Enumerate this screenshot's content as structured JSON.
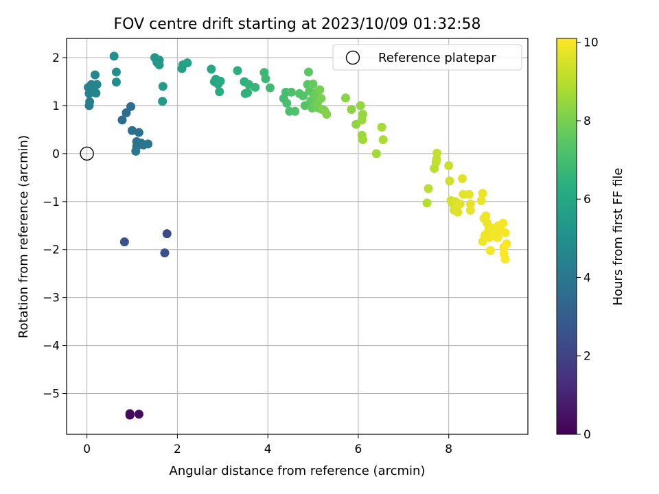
{
  "chart_data": {
    "type": "scatter",
    "title": "FOV centre drift starting at 2023/10/09 01:32:58",
    "xlabel": "Angular distance from reference (arcmin)",
    "ylabel": "Rotation from reference (arcmin)",
    "xlim": [
      -0.45,
      9.75
    ],
    "ylim": [
      -5.85,
      2.4
    ],
    "xticks": [
      0,
      2,
      4,
      6,
      8
    ],
    "yticks": [
      -5,
      -4,
      -3,
      -2,
      -1,
      0,
      1,
      2
    ],
    "grid": true,
    "colormap": "viridis",
    "colorbar": {
      "label": "Hours from first FF file",
      "min": 0,
      "max": 10.1,
      "ticks": [
        0,
        2,
        4,
        6,
        8,
        10
      ]
    },
    "legend": {
      "position": "top-right",
      "entries": [
        "Reference platepar"
      ]
    },
    "reference_point": {
      "x": 0,
      "y": 0,
      "label": "Reference platepar"
    },
    "points": [
      {
        "x": 0.95,
        "y": -5.45,
        "t": 0.2
      },
      {
        "x": 0.95,
        "y": -5.42,
        "t": 0.25
      },
      {
        "x": 1.15,
        "y": -5.43,
        "t": 0.3
      },
      {
        "x": 0.83,
        "y": -1.84,
        "t": 2.6
      },
      {
        "x": 1.77,
        "y": -1.67,
        "t": 2.3
      },
      {
        "x": 1.72,
        "y": -2.07,
        "t": 2.5
      },
      {
        "x": 0.78,
        "y": 0.7,
        "t": 3.55
      },
      {
        "x": 0.87,
        "y": 0.85,
        "t": 3.6
      },
      {
        "x": 0.97,
        "y": 0.98,
        "t": 3.65
      },
      {
        "x": 1.0,
        "y": 0.48,
        "t": 3.7
      },
      {
        "x": 1.15,
        "y": 0.44,
        "t": 3.75
      },
      {
        "x": 1.1,
        "y": 0.25,
        "t": 3.8
      },
      {
        "x": 1.2,
        "y": 0.22,
        "t": 3.85
      },
      {
        "x": 1.1,
        "y": 0.15,
        "t": 3.9
      },
      {
        "x": 1.25,
        "y": 0.18,
        "t": 3.95
      },
      {
        "x": 1.35,
        "y": 0.2,
        "t": 4.0
      },
      {
        "x": 1.08,
        "y": 0.05,
        "t": 4.05
      },
      {
        "x": 0.05,
        "y": 1.0,
        "t": 4.3
      },
      {
        "x": 0.06,
        "y": 1.08,
        "t": 4.35
      },
      {
        "x": 0.05,
        "y": 1.25,
        "t": 4.4
      },
      {
        "x": 0.03,
        "y": 1.38,
        "t": 4.45
      },
      {
        "x": 0.1,
        "y": 1.44,
        "t": 4.5
      },
      {
        "x": 0.16,
        "y": 1.3,
        "t": 4.55
      },
      {
        "x": 0.2,
        "y": 1.26,
        "t": 4.6
      },
      {
        "x": 0.22,
        "y": 1.44,
        "t": 4.65
      },
      {
        "x": 0.18,
        "y": 1.64,
        "t": 4.7
      },
      {
        "x": 0.65,
        "y": 1.49,
        "t": 5.0
      },
      {
        "x": 0.65,
        "y": 1.7,
        "t": 5.05
      },
      {
        "x": 0.6,
        "y": 2.03,
        "t": 5.1
      },
      {
        "x": 1.5,
        "y": 2.0,
        "t": 5.3
      },
      {
        "x": 1.55,
        "y": 1.9,
        "t": 5.35
      },
      {
        "x": 1.6,
        "y": 1.95,
        "t": 5.4
      },
      {
        "x": 1.6,
        "y": 1.85,
        "t": 5.45
      },
      {
        "x": 1.68,
        "y": 1.4,
        "t": 5.5
      },
      {
        "x": 1.67,
        "y": 1.09,
        "t": 5.55
      },
      {
        "x": 2.1,
        "y": 1.77,
        "t": 5.7
      },
      {
        "x": 2.12,
        "y": 1.85,
        "t": 5.75
      },
      {
        "x": 2.22,
        "y": 1.89,
        "t": 5.8
      },
      {
        "x": 2.75,
        "y": 1.76,
        "t": 6.0
      },
      {
        "x": 2.82,
        "y": 1.5,
        "t": 6.05
      },
      {
        "x": 2.85,
        "y": 1.55,
        "t": 6.1
      },
      {
        "x": 2.9,
        "y": 1.45,
        "t": 6.15
      },
      {
        "x": 2.95,
        "y": 1.51,
        "t": 6.2
      },
      {
        "x": 2.93,
        "y": 1.29,
        "t": 6.25
      },
      {
        "x": 3.33,
        "y": 1.73,
        "t": 6.4
      },
      {
        "x": 3.48,
        "y": 1.5,
        "t": 6.45
      },
      {
        "x": 3.5,
        "y": 1.25,
        "t": 6.5
      },
      {
        "x": 3.55,
        "y": 1.27,
        "t": 6.55
      },
      {
        "x": 3.58,
        "y": 1.44,
        "t": 6.6
      },
      {
        "x": 3.72,
        "y": 1.38,
        "t": 6.65
      },
      {
        "x": 3.92,
        "y": 1.69,
        "t": 6.8
      },
      {
        "x": 3.95,
        "y": 1.56,
        "t": 6.85
      },
      {
        "x": 4.05,
        "y": 1.37,
        "t": 6.9
      },
      {
        "x": 4.35,
        "y": 1.15,
        "t": 7.0
      },
      {
        "x": 4.4,
        "y": 1.28,
        "t": 7.05
      },
      {
        "x": 4.42,
        "y": 1.05,
        "t": 7.1
      },
      {
        "x": 4.48,
        "y": 0.88,
        "t": 7.15
      },
      {
        "x": 4.52,
        "y": 1.28,
        "t": 7.2
      },
      {
        "x": 4.6,
        "y": 0.88,
        "t": 7.25
      },
      {
        "x": 4.7,
        "y": 1.25,
        "t": 7.3
      },
      {
        "x": 4.78,
        "y": 1.2,
        "t": 7.35
      },
      {
        "x": 4.82,
        "y": 1.0,
        "t": 7.4
      },
      {
        "x": 4.88,
        "y": 1.44,
        "t": 7.45
      },
      {
        "x": 4.9,
        "y": 1.7,
        "t": 7.5
      },
      {
        "x": 4.92,
        "y": 1.3,
        "t": 7.55
      },
      {
        "x": 4.95,
        "y": 1.1,
        "t": 7.6
      },
      {
        "x": 4.98,
        "y": 0.95,
        "t": 7.65
      },
      {
        "x": 5.0,
        "y": 1.45,
        "t": 7.7
      },
      {
        "x": 5.02,
        "y": 1.2,
        "t": 7.75
      },
      {
        "x": 5.05,
        "y": 1.0,
        "t": 7.8
      },
      {
        "x": 5.08,
        "y": 1.28,
        "t": 7.85
      },
      {
        "x": 5.1,
        "y": 1.07,
        "t": 7.9
      },
      {
        "x": 5.12,
        "y": 0.95,
        "t": 7.95
      },
      {
        "x": 5.15,
        "y": 1.33,
        "t": 8.0
      },
      {
        "x": 5.18,
        "y": 1.15,
        "t": 8.05
      },
      {
        "x": 5.2,
        "y": 0.92,
        "t": 8.1
      },
      {
        "x": 5.25,
        "y": 0.9,
        "t": 8.15
      },
      {
        "x": 5.3,
        "y": 0.82,
        "t": 8.2
      },
      {
        "x": 5.72,
        "y": 1.16,
        "t": 8.3
      },
      {
        "x": 5.85,
        "y": 0.92,
        "t": 8.35
      },
      {
        "x": 5.95,
        "y": 0.61,
        "t": 8.4
      },
      {
        "x": 6.05,
        "y": 1.0,
        "t": 8.45
      },
      {
        "x": 6.1,
        "y": 0.82,
        "t": 8.5
      },
      {
        "x": 6.08,
        "y": 0.7,
        "t": 8.55
      },
      {
        "x": 6.08,
        "y": 0.38,
        "t": 8.6
      },
      {
        "x": 6.1,
        "y": 0.29,
        "t": 8.65
      },
      {
        "x": 6.4,
        "y": 0.0,
        "t": 8.7
      },
      {
        "x": 6.52,
        "y": 0.55,
        "t": 8.75
      },
      {
        "x": 6.55,
        "y": 0.29,
        "t": 8.8
      },
      {
        "x": 7.52,
        "y": -1.03,
        "t": 9.0
      },
      {
        "x": 7.55,
        "y": -0.73,
        "t": 9.05
      },
      {
        "x": 7.68,
        "y": -0.31,
        "t": 9.1
      },
      {
        "x": 7.72,
        "y": -0.18,
        "t": 9.15
      },
      {
        "x": 7.73,
        "y": -0.12,
        "t": 9.2
      },
      {
        "x": 7.74,
        "y": 0.01,
        "t": 9.25
      },
      {
        "x": 8.0,
        "y": -0.25,
        "t": 9.3
      },
      {
        "x": 8.02,
        "y": -0.57,
        "t": 9.35
      },
      {
        "x": 8.05,
        "y": -0.98,
        "t": 9.4
      },
      {
        "x": 8.1,
        "y": -1.05,
        "t": 9.45
      },
      {
        "x": 8.12,
        "y": -1.18,
        "t": 9.5
      },
      {
        "x": 8.15,
        "y": -1.0,
        "t": 9.55
      },
      {
        "x": 8.18,
        "y": -1.1,
        "t": 9.6
      },
      {
        "x": 8.2,
        "y": -1.22,
        "t": 9.62
      },
      {
        "x": 8.25,
        "y": -1.05,
        "t": 9.65
      },
      {
        "x": 8.3,
        "y": -0.52,
        "t": 9.68
      },
      {
        "x": 8.32,
        "y": -0.85,
        "t": 9.7
      },
      {
        "x": 8.45,
        "y": -0.85,
        "t": 9.72
      },
      {
        "x": 8.48,
        "y": -1.05,
        "t": 9.74
      },
      {
        "x": 8.48,
        "y": -1.18,
        "t": 9.76
      },
      {
        "x": 8.75,
        "y": -0.83,
        "t": 9.8
      },
      {
        "x": 8.72,
        "y": -0.98,
        "t": 9.82
      },
      {
        "x": 8.78,
        "y": -1.35,
        "t": 9.84
      },
      {
        "x": 8.82,
        "y": -1.3,
        "t": 9.86
      },
      {
        "x": 8.85,
        "y": -1.45,
        "t": 9.87
      },
      {
        "x": 8.88,
        "y": -1.6,
        "t": 9.88
      },
      {
        "x": 8.8,
        "y": -1.7,
        "t": 9.89
      },
      {
        "x": 8.75,
        "y": -1.83,
        "t": 9.9
      },
      {
        "x": 8.9,
        "y": -1.75,
        "t": 9.91
      },
      {
        "x": 8.95,
        "y": -1.55,
        "t": 9.92
      },
      {
        "x": 9.0,
        "y": -1.68,
        "t": 9.93
      },
      {
        "x": 9.05,
        "y": -1.62,
        "t": 9.94
      },
      {
        "x": 9.1,
        "y": -1.5,
        "t": 9.95
      },
      {
        "x": 9.08,
        "y": -1.75,
        "t": 9.96
      },
      {
        "x": 9.15,
        "y": -1.6,
        "t": 9.97
      },
      {
        "x": 8.92,
        "y": -2.02,
        "t": 9.98
      },
      {
        "x": 9.2,
        "y": -1.45,
        "t": 9.99
      },
      {
        "x": 9.25,
        "y": -1.65,
        "t": 10.0
      },
      {
        "x": 9.22,
        "y": -1.95,
        "t": 10.02
      },
      {
        "x": 9.28,
        "y": -1.88,
        "t": 10.04
      },
      {
        "x": 9.22,
        "y": -2.08,
        "t": 10.06
      },
      {
        "x": 9.25,
        "y": -2.2,
        "t": 10.08
      }
    ]
  }
}
